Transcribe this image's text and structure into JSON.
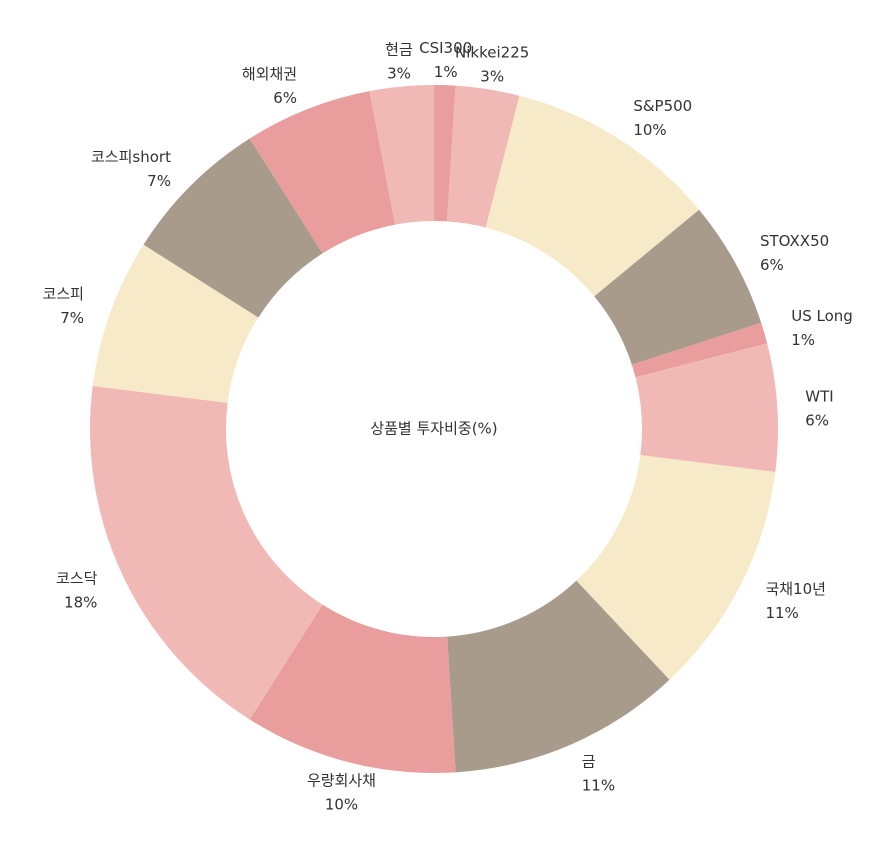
{
  "chart_data": {
    "type": "pie",
    "variant": "donut",
    "center_label": "상품별 투자비중(%)",
    "slices": [
      {
        "label": "CSI300",
        "value": 1,
        "value_label": "1%",
        "color": "#E99D9D"
      },
      {
        "label": "Nikkei225",
        "value": 3,
        "value_label": "3%",
        "color": "#F0B9B6"
      },
      {
        "label": "S&P500",
        "value": 10,
        "value_label": "10%",
        "color": "#F7EAC8"
      },
      {
        "label": "STOXX50",
        "value": 6,
        "value_label": "6%",
        "color": "#A89B8C"
      },
      {
        "label": "US Long",
        "value": 1,
        "value_label": "1%",
        "color": "#E99D9D"
      },
      {
        "label": "WTI",
        "value": 6,
        "value_label": "6%",
        "color": "#F0B9B6"
      },
      {
        "label": "국채10년",
        "value": 11,
        "value_label": "11%",
        "color": "#F7EAC8"
      },
      {
        "label": "금",
        "value": 11,
        "value_label": "11%",
        "color": "#A89B8C"
      },
      {
        "label": "우량회사채",
        "value": 10,
        "value_label": "10%",
        "color": "#E99D9D"
      },
      {
        "label": "코스닥",
        "value": 18,
        "value_label": "18%",
        "color": "#F0B9B6"
      },
      {
        "label": "코스피",
        "value": 7,
        "value_label": "7%",
        "color": "#F7EAC8"
      },
      {
        "label": "코스피short",
        "value": 7,
        "value_label": "7%",
        "color": "#A89B8C"
      },
      {
        "label": "해외채권",
        "value": 6,
        "value_label": "6%",
        "color": "#E99D9D"
      },
      {
        "label": "현금",
        "value": 3,
        "value_label": "3%",
        "color": "#F0B9B6"
      }
    ]
  }
}
